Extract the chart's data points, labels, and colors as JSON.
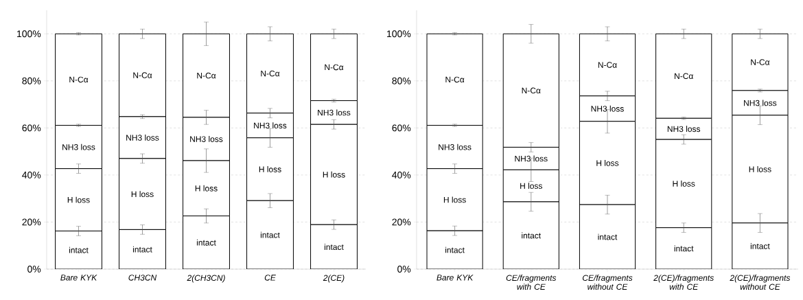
{
  "chart_data": [
    {
      "type": "bar",
      "stacked": true,
      "grid": "y",
      "legend": false,
      "categories": [
        "Bare KYK",
        "CH3CN",
        "2(CH3CN)",
        "CE",
        "2(CE)"
      ],
      "ylim": [
        0,
        110
      ],
      "yticks": [
        {
          "value": 0,
          "label": "0%"
        },
        {
          "value": 20,
          "label": "20%"
        },
        {
          "value": 40,
          "label": "40%"
        },
        {
          "value": 60,
          "label": "60%"
        },
        {
          "value": 80,
          "label": "80%"
        },
        {
          "value": 100,
          "label": "100%"
        }
      ],
      "series": [
        {
          "name": "intact",
          "color": "#ffffff",
          "values": [
            16.2,
            16.8,
            22.6,
            29.1,
            18.9
          ],
          "errors": [
            2,
            2,
            3,
            3,
            2
          ]
        },
        {
          "name": "H loss",
          "color": "#ffffff",
          "values": [
            26.5,
            30.2,
            23.5,
            26.7,
            42.6
          ],
          "errors": [
            2,
            2,
            5,
            4,
            2
          ]
        },
        {
          "name": "NH3 loss",
          "color": "#ffffff",
          "values": [
            18.4,
            17.8,
            18.4,
            10.5,
            10.1
          ],
          "errors": [
            0.5,
            0.8,
            3,
            2,
            0.6
          ]
        },
        {
          "name": "N-Cα",
          "color": "#ffffff",
          "values": [
            38.9,
            35.2,
            35.5,
            33.7,
            28.4
          ],
          "errors": [
            0.5,
            2,
            5,
            3,
            2
          ]
        }
      ]
    },
    {
      "type": "bar",
      "stacked": true,
      "grid": "y",
      "legend": false,
      "categories": [
        "Bare KYK",
        "CE/fragments with CE",
        "CE/fragments without CE",
        "2(CE)/fragments with CE",
        "2(CE)/fragments without CE"
      ],
      "ylim": [
        0,
        110
      ],
      "yticks": [
        {
          "value": 0,
          "label": "0%"
        },
        {
          "value": 20,
          "label": "20%"
        },
        {
          "value": 40,
          "label": "40%"
        },
        {
          "value": 60,
          "label": "60%"
        },
        {
          "value": 80,
          "label": "80%"
        },
        {
          "value": 100,
          "label": "100%"
        }
      ],
      "series": [
        {
          "name": "intact",
          "color": "#ffffff",
          "values": [
            16.3,
            28.6,
            27.4,
            17.6,
            19.6
          ],
          "errors": [
            2,
            4,
            4,
            2,
            4
          ]
        },
        {
          "name": "H loss",
          "color": "#ffffff",
          "values": [
            26.4,
            13.6,
            35.4,
            37.5,
            45.8
          ],
          "errors": [
            2,
            5,
            5,
            2,
            4
          ]
        },
        {
          "name": "NH3 loss",
          "color": "#ffffff",
          "values": [
            18.4,
            9.6,
            10.8,
            9.0,
            10.5
          ],
          "errors": [
            0.5,
            2,
            2,
            0.5,
            0.6
          ]
        },
        {
          "name": "N-Cα",
          "color": "#ffffff",
          "values": [
            38.9,
            48.2,
            26.4,
            35.9,
            24.1
          ],
          "errors": [
            0.5,
            4,
            3,
            2,
            2
          ]
        }
      ]
    }
  ]
}
